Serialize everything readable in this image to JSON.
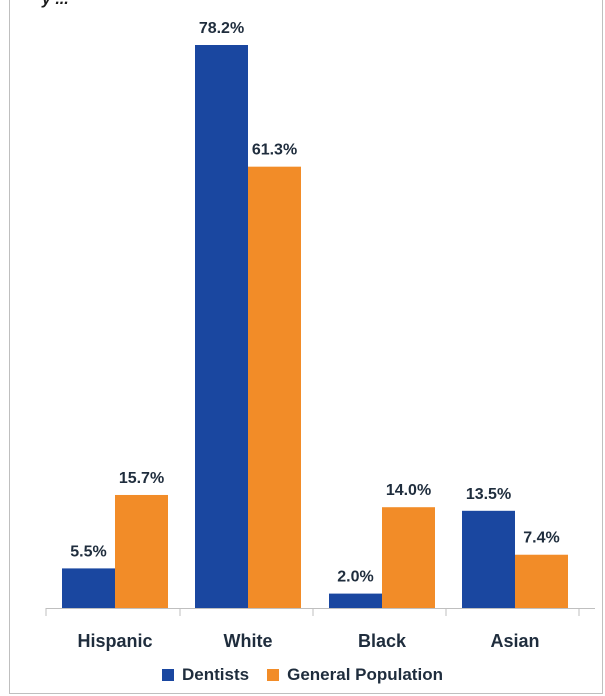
{
  "chart_data": {
    "type": "bar",
    "title": "",
    "title_fragment": "y ...",
    "categories": [
      "Hispanic",
      "White",
      "Black",
      "Asian"
    ],
    "series": [
      {
        "name": "Dentists",
        "values": [
          5.5,
          78.2,
          2.0,
          13.5
        ],
        "labels": [
          "5.5%",
          "78.2%",
          "2.0%",
          "13.5%"
        ],
        "color": "#1a47a0"
      },
      {
        "name": "General Population",
        "values": [
          15.7,
          61.3,
          14.0,
          7.4
        ],
        "labels": [
          "15.7%",
          "61.3%",
          "14.0%",
          "7.4%"
        ],
        "color": "#f28c28"
      }
    ],
    "xlabel": "",
    "ylabel": "",
    "ylim": [
      0,
      78.2
    ],
    "grid": false,
    "legend_position": "bottom"
  }
}
